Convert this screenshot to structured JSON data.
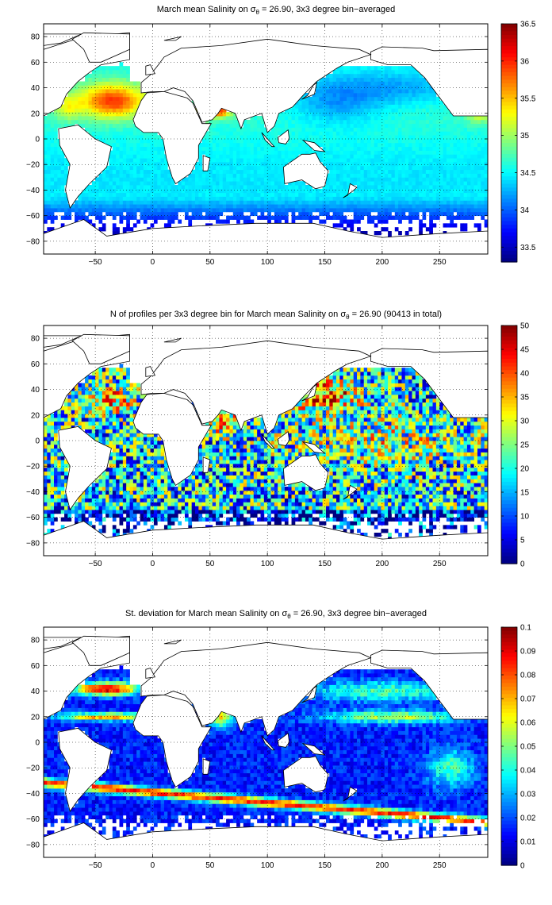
{
  "panels": [
    {
      "title_pre": "March mean Salinity on σ",
      "title_sub": "θ",
      "title_post": " = 26.90, 3x3 degree bin−averaged",
      "field": "salinity",
      "cbar_ticks": [
        "36.5",
        "36",
        "35.5",
        "35",
        "34.5",
        "34",
        "33.5"
      ],
      "cbar_values": [
        36.5,
        36,
        35.5,
        35,
        34.5,
        34,
        33.5
      ],
      "cbar_range": [
        33.3,
        36.5
      ]
    },
    {
      "title_pre": "N of profiles per 3x3 degree bin for March mean Salinity on σ",
      "title_sub": "θ",
      "title_post": " = 26.90 (90413 in total)",
      "field": "count",
      "cbar_ticks": [
        "50",
        "45",
        "40",
        "35",
        "30",
        "25",
        "20",
        "15",
        "10",
        "5",
        "0"
      ],
      "cbar_values": [
        50,
        45,
        40,
        35,
        30,
        25,
        20,
        15,
        10,
        5,
        0
      ],
      "cbar_range": [
        0,
        50
      ]
    },
    {
      "title_pre": "St. deviation for March mean Salinity on σ",
      "title_sub": "θ",
      "title_post": " = 26.90, 3x3 degree bin−averaged",
      "field": "stdev",
      "cbar_ticks": [
        "0.1",
        "0.09",
        "0.08",
        "0.07",
        "0.06",
        "0.05",
        "0.04",
        "0.03",
        "0.02",
        "0.01",
        "0"
      ],
      "cbar_values": [
        0.1,
        0.09,
        0.08,
        0.07,
        0.06,
        0.05,
        0.04,
        0.03,
        0.02,
        0.01,
        0
      ],
      "cbar_range": [
        0,
        0.1
      ]
    }
  ],
  "x_axis": {
    "range": [
      -95,
      292
    ],
    "ticks": [
      "−50",
      "0",
      "50",
      "100",
      "150",
      "200",
      "250"
    ],
    "tick_values": [
      -50,
      0,
      50,
      100,
      150,
      200,
      250
    ]
  },
  "y_axis": {
    "range": [
      -90,
      90
    ],
    "ticks": [
      "80",
      "60",
      "40",
      "20",
      "0",
      "−20",
      "−40",
      "−60",
      "−80"
    ],
    "tick_values": [
      80,
      60,
      40,
      20,
      0,
      -20,
      -40,
      -60,
      -80
    ]
  },
  "colormap": "jet"
}
